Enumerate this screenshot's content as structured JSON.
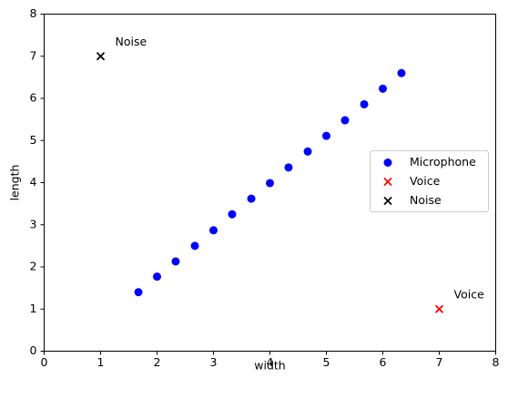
{
  "chart_data": {
    "type": "scatter",
    "title": "",
    "xlabel": "width",
    "ylabel": "length",
    "xlim": [
      0,
      8
    ],
    "ylim": [
      0,
      8
    ],
    "xticks": [
      "0",
      "1",
      "2",
      "3",
      "4",
      "5",
      "6",
      "7",
      "8"
    ],
    "yticks": [
      "0",
      "1",
      "2",
      "3",
      "4",
      "5",
      "6",
      "7",
      "8"
    ],
    "grid": false,
    "legend_placement": "center-right",
    "series": [
      {
        "name": "Microphone",
        "marker": "circle",
        "color": "#0000ff",
        "points": [
          [
            1.67,
            1.4
          ],
          [
            2.0,
            1.77
          ],
          [
            2.33,
            2.13
          ],
          [
            2.67,
            2.5
          ],
          [
            3.0,
            2.87
          ],
          [
            3.33,
            3.25
          ],
          [
            3.67,
            3.62
          ],
          [
            4.0,
            3.99
          ],
          [
            4.33,
            4.36
          ],
          [
            4.67,
            4.74
          ],
          [
            5.0,
            5.11
          ],
          [
            5.33,
            5.48
          ],
          [
            5.67,
            5.86
          ],
          [
            6.0,
            6.23
          ],
          [
            6.33,
            6.6
          ]
        ]
      },
      {
        "name": "Voice",
        "marker": "x",
        "color": "#ff0000",
        "points": [
          [
            7,
            1
          ]
        ]
      },
      {
        "name": "Noise",
        "marker": "x",
        "color": "#000000",
        "points": [
          [
            1,
            7
          ]
        ]
      }
    ],
    "annotations": [
      {
        "text": "Voice",
        "x": 7,
        "y": 1
      },
      {
        "text": "Noise",
        "x": 1,
        "y": 7
      }
    ]
  }
}
